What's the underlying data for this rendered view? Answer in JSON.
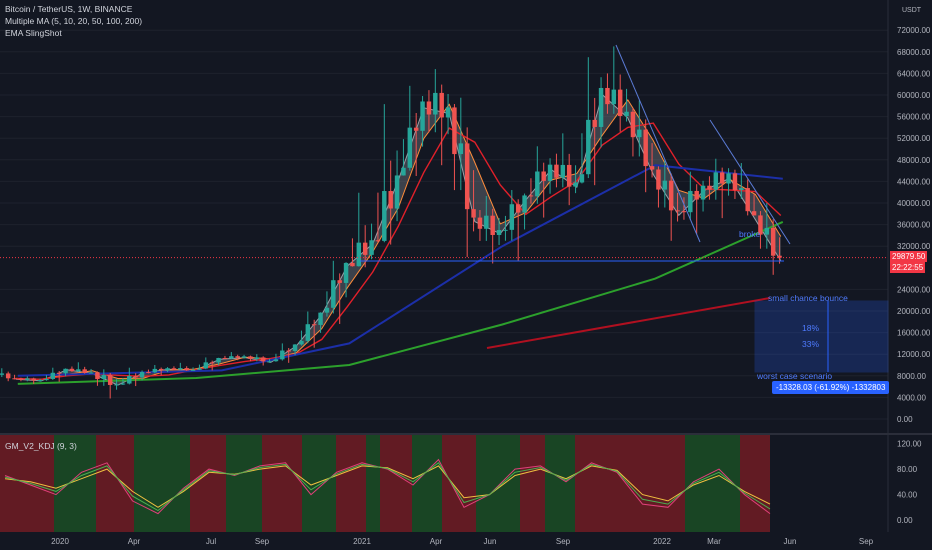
{
  "header": {
    "symbol": "Bitcoin / TetherUS, 1W, BINANCE",
    "ma": "Multiple MA (5, 10, 20, 50, 100, 200)",
    "ema": "EMA SlingShot",
    "indicator": "GM_V2_KDJ (9, 3)"
  },
  "axis": {
    "currency": "USDT",
    "price_ticks": [
      "72000.00",
      "68000.00",
      "64000.00",
      "60000.00",
      "56000.00",
      "52000.00",
      "48000.00",
      "44000.00",
      "40000.00",
      "36000.00",
      "32000.00",
      "24000.00",
      "20000.00",
      "16000.00",
      "12000.00",
      "8000.00",
      "4000.00",
      "0.00"
    ],
    "ind_ticks": [
      "120.00",
      "80.00",
      "40.00",
      "0.00"
    ],
    "time_ticks": [
      "2020",
      "Apr",
      "Jul",
      "Sep",
      "2021",
      "Apr",
      "Jun",
      "Sep",
      "2022",
      "Mar",
      "Jun",
      "Sep"
    ]
  },
  "tags": {
    "last_price": "29879.50",
    "countdown": "22:22:55",
    "measure": "-13328.03 (-61.92%) -1332803"
  },
  "annotations": {
    "broke": "broke",
    "bounce": "small chance bounce",
    "worst": "worst case scenario",
    "pct1": "18%",
    "pct2": "33%"
  },
  "colors": {
    "background": "#131722",
    "bull": "#26a69a",
    "bear": "#ef5350",
    "ma_orange": "#ff8c3a",
    "ma_red": "#e0202a",
    "ma_blue": "#1c2fa8",
    "ma_green": "#2ca02c",
    "ma_darkred": "#b01020",
    "accent": "#2962ff"
  },
  "chart_data": [
    {
      "type": "candlestick",
      "title": "Bitcoin / TetherUS, 1W, BINANCE",
      "ylim": [
        0,
        74000
      ],
      "ohlc_approx": [
        {
          "date": "2019-11",
          "open": 8800,
          "high": 9400,
          "low": 7000,
          "close": 7500
        },
        {
          "date": "2019-12",
          "open": 7500,
          "high": 7900,
          "low": 6500,
          "close": 7200
        },
        {
          "date": "2020-01",
          "open": 7200,
          "high": 9500,
          "low": 6900,
          "close": 9300
        },
        {
          "date": "2020-02",
          "open": 9300,
          "high": 10500,
          "low": 8400,
          "close": 8600
        },
        {
          "date": "2020-03",
          "open": 8600,
          "high": 9200,
          "low": 3800,
          "close": 6400
        },
        {
          "date": "2020-04",
          "open": 6400,
          "high": 9500,
          "low": 6100,
          "close": 8700
        },
        {
          "date": "2020-05",
          "open": 8700,
          "high": 10000,
          "low": 8100,
          "close": 9400
        },
        {
          "date": "2020-06",
          "open": 9400,
          "high": 10400,
          "low": 8900,
          "close": 9100
        },
        {
          "date": "2020-07",
          "open": 9100,
          "high": 11400,
          "low": 9000,
          "close": 11300
        },
        {
          "date": "2020-08",
          "open": 11300,
          "high": 12400,
          "low": 10900,
          "close": 11600
        },
        {
          "date": "2020-09",
          "open": 11600,
          "high": 12000,
          "low": 9900,
          "close": 10700
        },
        {
          "date": "2020-10",
          "open": 10700,
          "high": 14000,
          "low": 10400,
          "close": 13800
        },
        {
          "date": "2020-11",
          "open": 13800,
          "high": 19900,
          "low": 13200,
          "close": 19700
        },
        {
          "date": "2020-12",
          "open": 19700,
          "high": 29300,
          "low": 17600,
          "close": 28900
        },
        {
          "date": "2021-01",
          "open": 28900,
          "high": 41900,
          "low": 28100,
          "close": 33100
        },
        {
          "date": "2021-02",
          "open": 33100,
          "high": 58300,
          "low": 32300,
          "close": 45100
        },
        {
          "date": "2021-03",
          "open": 45100,
          "high": 61700,
          "low": 45000,
          "close": 58800
        },
        {
          "date": "2021-04",
          "open": 58800,
          "high": 64800,
          "low": 47000,
          "close": 57700
        },
        {
          "date": "2021-05",
          "open": 57700,
          "high": 59500,
          "low": 30000,
          "close": 37300
        },
        {
          "date": "2021-06",
          "open": 37300,
          "high": 41300,
          "low": 28800,
          "close": 35000
        },
        {
          "date": "2021-07",
          "open": 35000,
          "high": 42400,
          "low": 29300,
          "close": 41400
        },
        {
          "date": "2021-08",
          "open": 41400,
          "high": 50500,
          "low": 37300,
          "close": 47100
        },
        {
          "date": "2021-09",
          "open": 47100,
          "high": 52900,
          "low": 39600,
          "close": 43800
        },
        {
          "date": "2021-10",
          "open": 43800,
          "high": 67000,
          "low": 43300,
          "close": 61300
        },
        {
          "date": "2021-11",
          "open": 61300,
          "high": 69000,
          "low": 53200,
          "close": 56900
        },
        {
          "date": "2021-12",
          "open": 56900,
          "high": 59000,
          "low": 42000,
          "close": 46200
        },
        {
          "date": "2022-01",
          "open": 46200,
          "high": 47900,
          "low": 33000,
          "close": 38500
        },
        {
          "date": "2022-02",
          "open": 38500,
          "high": 45800,
          "low": 34300,
          "close": 43200
        },
        {
          "date": "2022-03",
          "open": 43200,
          "high": 48200,
          "low": 37200,
          "close": 45500
        },
        {
          "date": "2022-04",
          "open": 45500,
          "high": 47400,
          "low": 37700,
          "close": 37700
        },
        {
          "date": "2022-05",
          "open": 37700,
          "high": 40000,
          "low": 26700,
          "close": 29879.5
        }
      ],
      "moving_averages": [
        {
          "name": "MA 200 (green)",
          "values": [
            {
              "date": "2019-11",
              "y": 6500
            },
            {
              "date": "2020-06",
              "y": 7600
            },
            {
              "date": "2020-12",
              "y": 10000
            },
            {
              "date": "2021-06",
              "y": 17500
            },
            {
              "date": "2021-12",
              "y": 26000
            },
            {
              "date": "2022-05",
              "y": 36500
            }
          ]
        },
        {
          "name": "MA 100 (blue)",
          "values": [
            {
              "date": "2019-11",
              "y": 8000
            },
            {
              "date": "2020-07",
              "y": 9000
            },
            {
              "date": "2020-12",
              "y": 14000
            },
            {
              "date": "2021-06",
              "y": 32000
            },
            {
              "date": "2021-12",
              "y": 47000
            },
            {
              "date": "2022-05",
              "y": 44500
            }
          ]
        }
      ],
      "annotations": [
        "broke",
        "small chance bounce",
        "worst case scenario",
        "18%",
        "33%"
      ]
    },
    {
      "type": "line",
      "title": "GM_V2_KDJ (9, 3)",
      "ylim": [
        -10,
        125
      ],
      "series": [
        {
          "name": "K",
          "values": [
            70,
            55,
            40,
            75,
            90,
            30,
            10,
            50,
            80,
            70,
            85,
            90,
            40,
            75,
            90,
            80,
            55,
            95,
            20,
            40,
            80,
            85,
            60,
            90,
            75,
            25,
            20,
            60,
            80,
            40,
            10
          ]
        },
        {
          "name": "D",
          "values": [
            65,
            60,
            50,
            65,
            80,
            45,
            20,
            45,
            75,
            72,
            80,
            85,
            55,
            70,
            85,
            82,
            65,
            85,
            35,
            40,
            70,
            80,
            65,
            85,
            78,
            40,
            30,
            55,
            70,
            45,
            25
          ]
        }
      ]
    }
  ]
}
